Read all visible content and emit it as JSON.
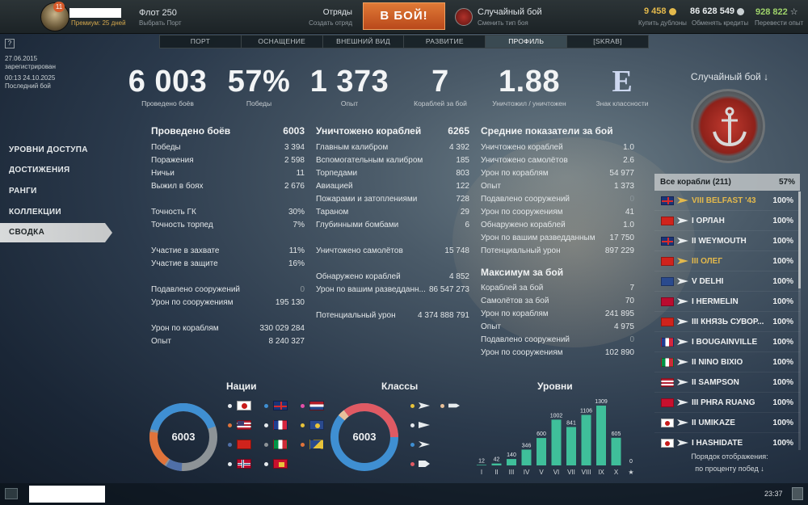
{
  "topbar": {
    "level_badge": "11",
    "premium": "Премиум: 25 дней",
    "fleet_title": "Флот 250",
    "fleet_sub": "Выбрать Порт",
    "mode_title": "Отряды",
    "mode_sub": "Создать отряд",
    "battle_label": "В БОЙ!",
    "random_title": "Случайный бой",
    "random_sub": "Сменить тип боя",
    "doubloons": "9 458",
    "doubloons_sub": "Купить дублоны",
    "credits": "86 628 549",
    "credits_sub": "Обменять кредиты",
    "xp": "928 822",
    "xp_sub": "Перевести опыт",
    "colors": {
      "battle": "#c9562a",
      "gold": "#e3b94c",
      "xp_green": "#9fd36b"
    }
  },
  "tabs": [
    "ПОРТ",
    "ОСНАЩЕНИЕ",
    "ВНЕШНИЙ ВИД",
    "РАЗВИТИЕ",
    "ПРОФИЛЬ",
    "[SKRAB]"
  ],
  "help": "?",
  "registration": {
    "date": "27.06.2015",
    "label": "зарегистрирован",
    "last_battle_time": "00:13  24.10.2025",
    "last_battle_label": "Последний бой"
  },
  "bigstats": [
    {
      "value": "6 003",
      "label": "Проведено боёв"
    },
    {
      "value": "57%",
      "label": "Победы"
    },
    {
      "value": "1 373",
      "label": "Опыт"
    },
    {
      "value": "7",
      "label": "Кораблей за бой"
    },
    {
      "value": "1.88",
      "label": "Уничтожил / уничтожен"
    }
  ],
  "grade": {
    "value": "E",
    "label": "Знак классности"
  },
  "menu": [
    "УРОВНИ ДОСТУПА",
    "ДОСТИЖЕНИЯ",
    "РАНГИ",
    "КОЛЛЕКЦИИ",
    "СВОДКА"
  ],
  "col1": {
    "title": "Проведено боёв",
    "total": "6003",
    "rows": [
      [
        "Победы",
        "3 394"
      ],
      [
        "Поражения",
        "2 598"
      ],
      [
        "Ничьи",
        "11"
      ],
      [
        "Выжил в боях",
        "2 676"
      ],
      [
        "Точность ГК",
        "30%"
      ],
      [
        "Точность торпед",
        "7%"
      ],
      [
        "Участие в захвате",
        "11%"
      ],
      [
        "Участие в защите",
        "16%"
      ],
      [
        "Подавлено сооружений",
        "0"
      ],
      [
        "Урон по сооружениям",
        "195 130"
      ],
      [
        "Урон по кораблям",
        "330 029 284"
      ],
      [
        "Опыт",
        "8 240 327"
      ]
    ]
  },
  "col2": {
    "title": "Уничтожено кораблей",
    "total": "6265",
    "rows": [
      [
        "Главным калибром",
        "4 392"
      ],
      [
        "Вспомогательным калибром",
        "185"
      ],
      [
        "Торпедами",
        "803"
      ],
      [
        "Авиацией",
        "122"
      ],
      [
        "Пожарами и затоплениями",
        "728"
      ],
      [
        "Тараном",
        "29"
      ],
      [
        "Глубинными бомбами",
        "6"
      ],
      [
        "Уничтожено самолётов",
        "15 748"
      ],
      [
        "Обнаружено кораблей",
        "4 852"
      ],
      [
        "Урон по вашим разведданн...",
        "86 547 273"
      ],
      [
        "Потенциальный урон",
        "4 374 888 791"
      ]
    ]
  },
  "col3": {
    "title": "Средние показатели за бой",
    "rows": [
      [
        "Уничтожено кораблей",
        "1.0"
      ],
      [
        "Уничтожено самолётов",
        "2.6"
      ],
      [
        "Урон по кораблям",
        "54 977"
      ],
      [
        "Опыт",
        "1 373"
      ],
      [
        "Подавлено сооружений",
        "0"
      ],
      [
        "Урон по сооружениям",
        "41"
      ],
      [
        "Обнаружено кораблей",
        "1.0"
      ],
      [
        "Урон по вашим разведданным",
        "17 750"
      ],
      [
        "Потенциальный урон",
        "897 229"
      ]
    ],
    "max_title": "Максимум за бой",
    "max_rows": [
      [
        "Кораблей за бой",
        "7"
      ],
      [
        "Самолётов за бой",
        "70"
      ],
      [
        "Урон по кораблям",
        "241 895"
      ],
      [
        "Опыт",
        "4 975"
      ],
      [
        "Подавлено сооружений",
        "0"
      ],
      [
        "Урон по сооружениям",
        "102 890"
      ]
    ]
  },
  "right_panel": {
    "title": "Случайный бой ↓",
    "all_ships_label": "Все корабли (211)",
    "all_ships_pct": "57%",
    "ships": [
      {
        "tier": "VIII",
        "name": "BELFAST '43",
        "pct": "100%",
        "flag": "uk",
        "gold": true
      },
      {
        "tier": "I",
        "name": "ОРЛАН",
        "pct": "100%",
        "flag": "cn",
        "gold": false
      },
      {
        "tier": "II",
        "name": "WEYMOUTH",
        "pct": "100%",
        "flag": "uk",
        "gold": false
      },
      {
        "tier": "III",
        "name": "ОЛЕГ",
        "pct": "100%",
        "flag": "cn",
        "gold": true
      },
      {
        "tier": "V",
        "name": "DELHI",
        "pct": "100%",
        "flag": "commonwealth",
        "gold": false
      },
      {
        "tier": "I",
        "name": "HERMELIN",
        "pct": "100%",
        "flag": "no",
        "gold": false
      },
      {
        "tier": "III",
        "name": "КНЯЗЬ СУВОР...",
        "pct": "100%",
        "flag": "cn",
        "gold": false
      },
      {
        "tier": "I",
        "name": "BOUGAINVILLE",
        "pct": "100%",
        "flag": "fr",
        "gold": false
      },
      {
        "tier": "II",
        "name": "NINO BIXIO",
        "pct": "100%",
        "flag": "it",
        "gold": false
      },
      {
        "tier": "II",
        "name": "SAMPSON",
        "pct": "100%",
        "flag": "us",
        "gold": false
      },
      {
        "tier": "III",
        "name": "PHRA RUANG",
        "pct": "100%",
        "flag": "th",
        "gold": false
      },
      {
        "tier": "II",
        "name": "UMIKAZE",
        "pct": "100%",
        "flag": "jp",
        "gold": false
      },
      {
        "tier": "I",
        "name": "HASHIDATE",
        "pct": "100%",
        "flag": "jp",
        "gold": false
      }
    ],
    "sort_line1": "Порядок отображения:",
    "sort_line2": "по проценту побед ↓"
  },
  "charts": {
    "nations_title": "Нации",
    "classes_title": "Классы",
    "tiers_title": "Уровни",
    "nations_total": "6003",
    "classes_total": "6003"
  },
  "chart_data": [
    {
      "type": "pie",
      "title": "Нации",
      "center_label": "6003",
      "categories": [
        "Япония",
        "Великобритания",
        "Нидерланды",
        "США",
        "Франция",
        "Содружество",
        "Китай",
        "Италия",
        "Европа",
        "Норвегия",
        "Таиланд"
      ]
    },
    {
      "type": "pie",
      "title": "Классы",
      "center_label": "6003",
      "categories": [
        "Эсминцы",
        "Линкоры",
        "Крейсера",
        "Авианосцы",
        "Подлодки"
      ]
    },
    {
      "type": "bar",
      "title": "Уровни",
      "categories": [
        "I",
        "II",
        "III",
        "IV",
        "V",
        "VI",
        "VII",
        "VIII",
        "IX",
        "X",
        "★"
      ],
      "values": [
        12,
        42,
        140,
        346,
        600,
        1002,
        841,
        1106,
        1309,
        605,
        0
      ],
      "color": "#3fbf9a"
    }
  ],
  "bottom": {
    "clock": "23:37"
  }
}
